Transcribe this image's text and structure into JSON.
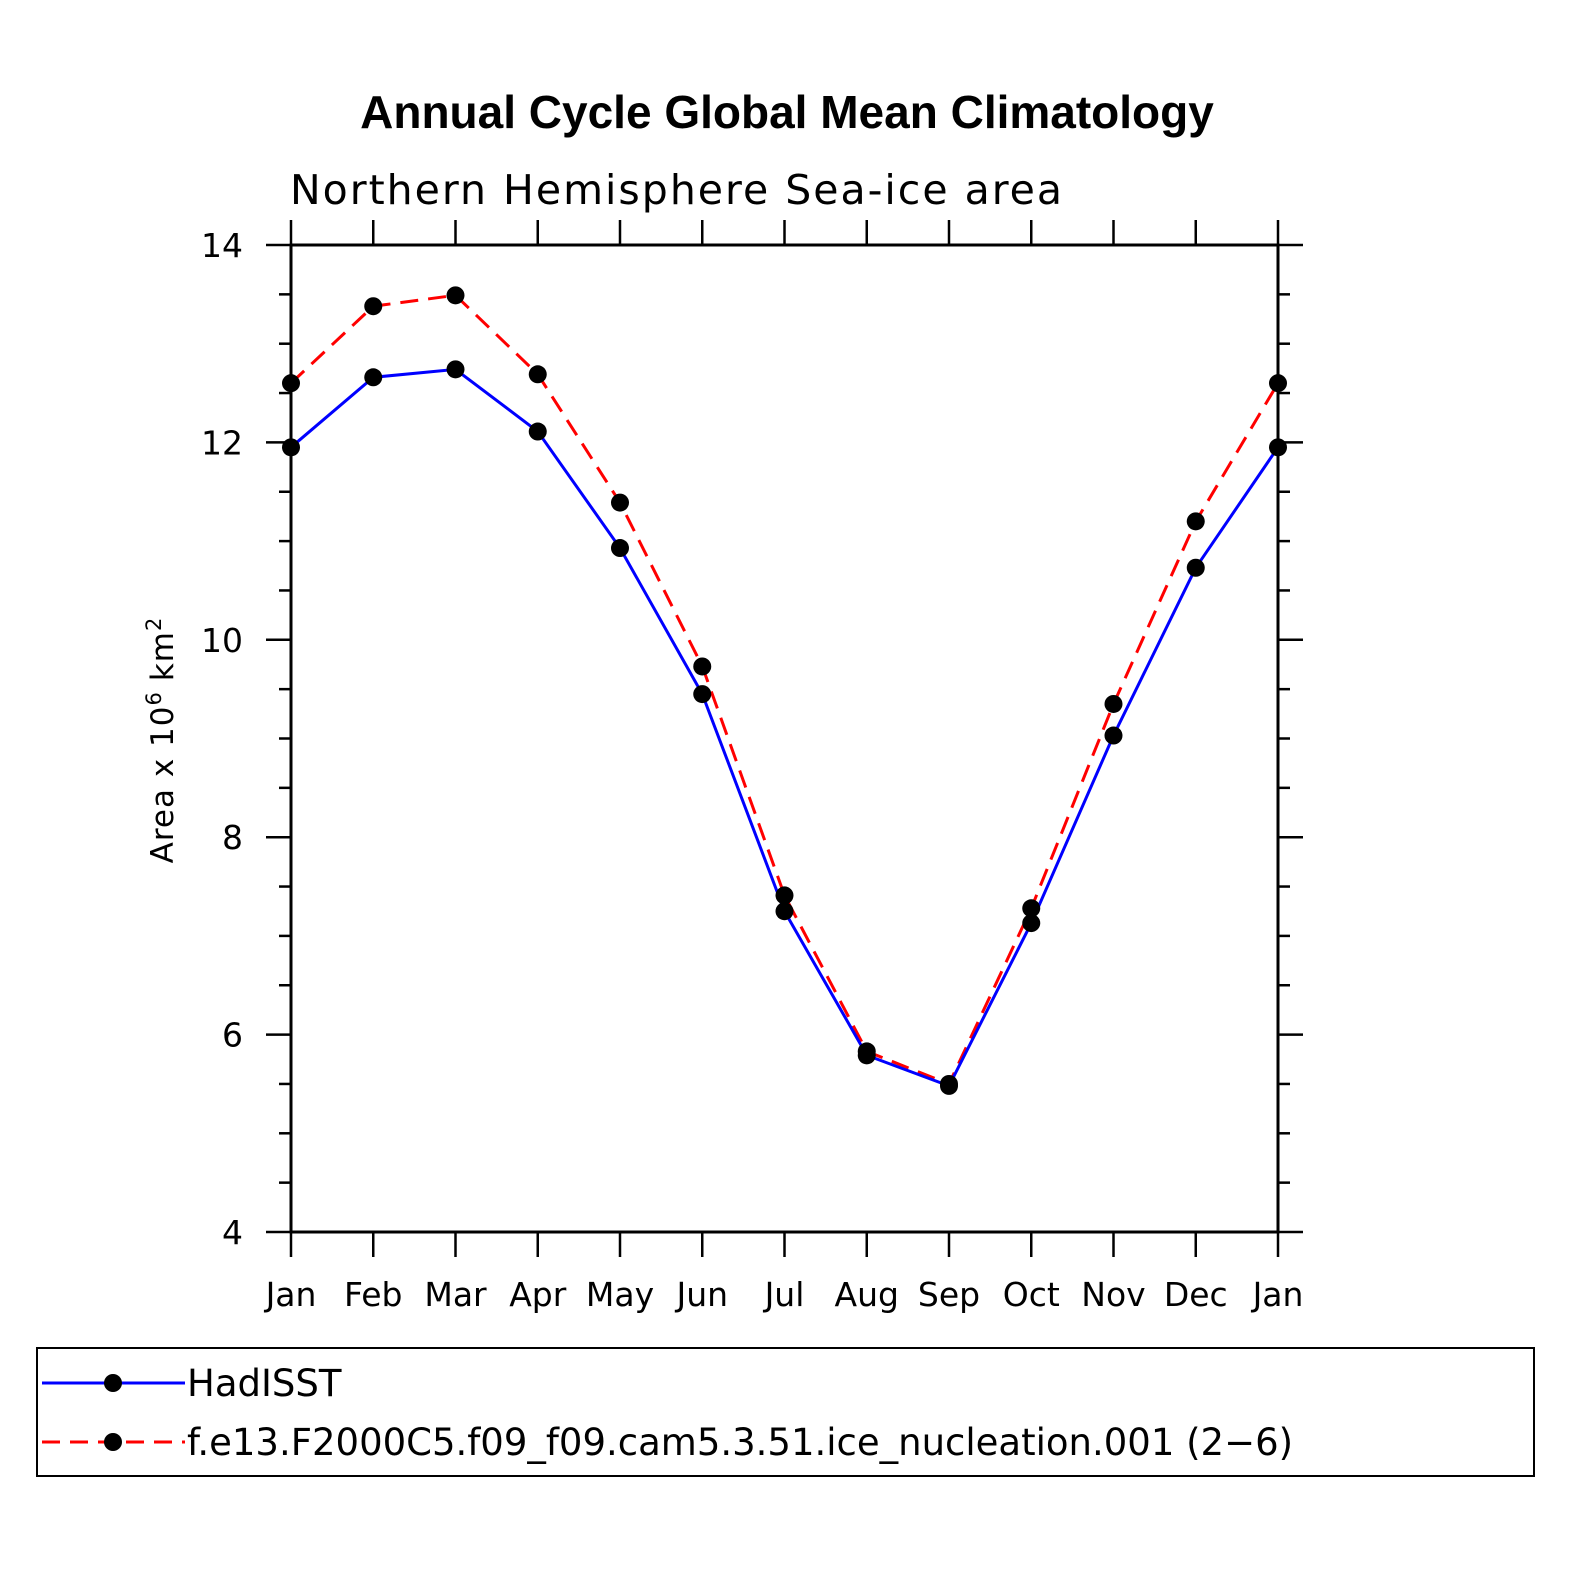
{
  "chart_data": {
    "type": "line",
    "title": "Annual Cycle Global Mean Climatology",
    "subtitle": "Northern Hemisphere Sea-ice area",
    "ylabel_main": "Area x 10",
    "ylabel_exp": "6",
    "ylabel_unit": "km",
    "ylabel_unit_exp": "2",
    "categories": [
      "Jan",
      "Feb",
      "Mar",
      "Apr",
      "May",
      "Jun",
      "Jul",
      "Aug",
      "Sep",
      "Oct",
      "Nov",
      "Dec",
      "Jan"
    ],
    "ylim": [
      4,
      14
    ],
    "yticks": [
      "4",
      "6",
      "8",
      "10",
      "12",
      "14"
    ],
    "legend_position": "bottom",
    "series": [
      {
        "name": "HadISST",
        "color": "#0000ff",
        "dash": "solid",
        "values": [
          11.95,
          12.66,
          12.74,
          12.11,
          10.93,
          9.45,
          7.25,
          5.79,
          5.48,
          7.13,
          9.03,
          10.73,
          11.95
        ]
      },
      {
        "name": "f.e13.F2000C5.f09_f09.cam5.3.51.ice_nucleation.001 (2−6)",
        "color": "#ff0000",
        "dash": "dashed",
        "values": [
          12.6,
          13.38,
          13.49,
          12.69,
          11.39,
          9.73,
          7.41,
          5.83,
          5.5,
          7.28,
          9.35,
          11.2,
          12.6
        ]
      }
    ]
  }
}
